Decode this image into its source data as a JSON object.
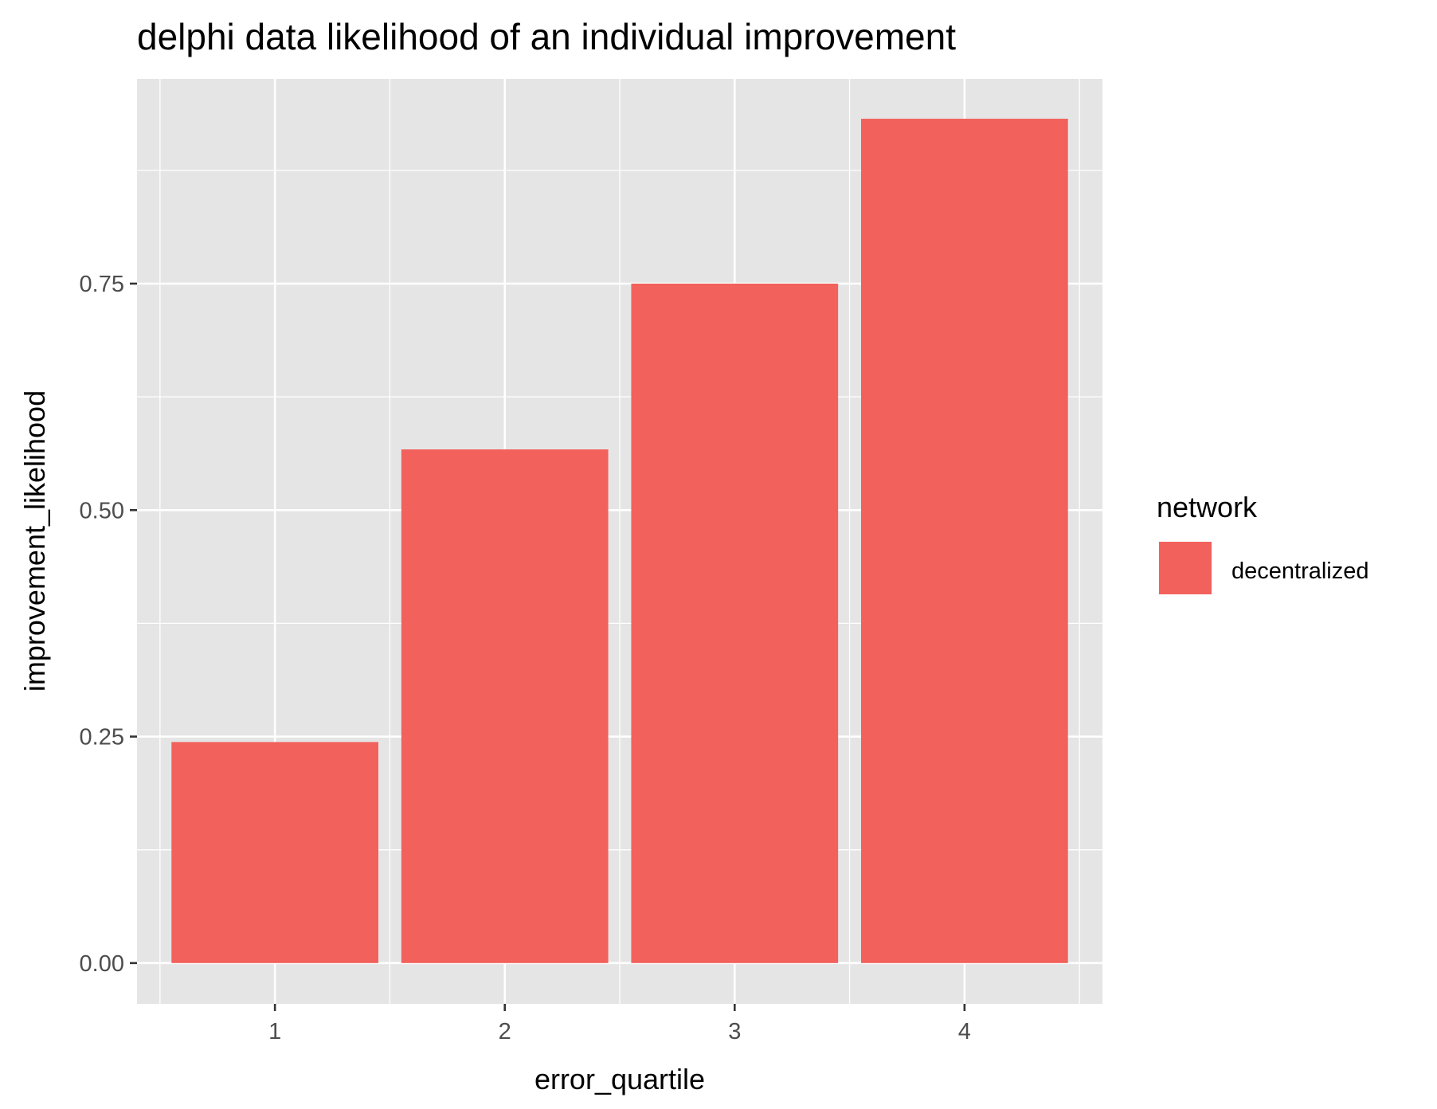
{
  "chart_data": {
    "type": "bar",
    "title": "delphi data likelihood of an individual improvement",
    "xlabel": "error_quartile",
    "ylabel": "improvement_likelihood",
    "categories": [
      "1",
      "2",
      "3",
      "4"
    ],
    "series": [
      {
        "name": "decentralized",
        "values": [
          0.244,
          0.567,
          0.75,
          0.932
        ]
      }
    ],
    "ylim": [
      -0.045,
      0.976
    ],
    "yticks": [
      0.0,
      0.25,
      0.5,
      0.75
    ],
    "ytick_labels": [
      "0.00",
      "0.25",
      "0.50",
      "0.75"
    ],
    "grid": true,
    "legend": {
      "title": "network",
      "position": "right"
    },
    "colors": {
      "bar": "#F2615C",
      "panel_background": "#E5E5E5",
      "grid_line": "#FFFFFF",
      "text": "#000000",
      "tick_text": "#4D4D4D",
      "tick_mark": "#333333"
    }
  }
}
